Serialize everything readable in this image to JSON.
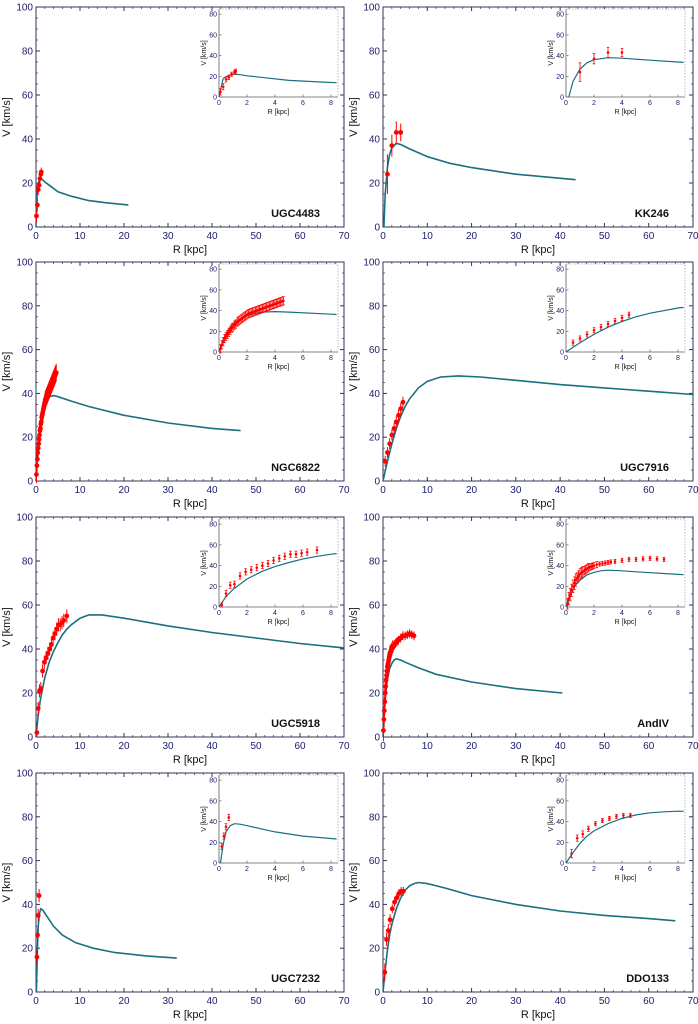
{
  "figure": {
    "xlabel": "R [kpc]",
    "ylabel": "V [km/s]",
    "inset_xlabel": "R [kpc]",
    "inset_ylabel": "V [km/s]",
    "colors": {
      "model": "#1a6f80",
      "data": "#ff0000",
      "axis": "#333355",
      "tick_text": "#1a1a6a",
      "grid": "#aaaaaa"
    }
  },
  "chart_data": [
    {
      "type": "line",
      "title": "UGC4483",
      "xlabel": "R [kpc]",
      "ylabel": "V [km/s]",
      "xlim": [
        0,
        70
      ],
      "ylim": [
        0,
        100
      ],
      "xticks": [
        0,
        10,
        20,
        30,
        40,
        50,
        60,
        70
      ],
      "yticks": [
        0,
        20,
        40,
        60,
        80,
        100
      ],
      "model": {
        "x": [
          0,
          0.3,
          0.7,
          1.1,
          1.5,
          2,
          3,
          5,
          8,
          12,
          16,
          21
        ],
        "y": [
          0,
          18,
          21,
          22,
          21.5,
          20.5,
          19,
          16,
          14,
          12,
          11,
          10
        ]
      },
      "observed": {
        "x": [
          0.1,
          0.3,
          0.5,
          0.7,
          0.9,
          1.1,
          1.2
        ],
        "y": [
          5,
          10,
          17,
          19,
          22,
          24,
          25
        ],
        "err": [
          3,
          3,
          2.5,
          2,
          2,
          2,
          2
        ]
      },
      "inset": {
        "xlim": [
          0,
          8.5
        ],
        "ylim": [
          0,
          85
        ],
        "xticks": [
          0,
          2,
          4,
          6,
          8
        ],
        "yticks": [
          0,
          20,
          40,
          60,
          80
        ],
        "model_xmax": 8.4
      }
    },
    {
      "type": "line",
      "title": "KK246",
      "xlabel": "R [kpc]",
      "ylabel": "V [km/s]",
      "xlim": [
        0,
        70
      ],
      "ylim": [
        0,
        100
      ],
      "xticks": [
        0,
        10,
        20,
        30,
        40,
        50,
        60,
        70
      ],
      "yticks": [
        0,
        20,
        40,
        60,
        80,
        100
      ],
      "model": {
        "x": [
          0.2,
          0.5,
          1,
          1.5,
          2,
          3,
          4,
          6,
          10,
          15,
          20,
          30,
          43.5
        ],
        "y": [
          0,
          15,
          27,
          33,
          36,
          38,
          37.5,
          35.5,
          32,
          29,
          27,
          24,
          21.5
        ]
      },
      "observed": {
        "x": [
          1,
          2,
          3,
          4
        ],
        "y": [
          24,
          37,
          43,
          43
        ],
        "err": [
          9,
          5,
          5,
          4
        ]
      },
      "inset": {
        "xlim": [
          0,
          8.5
        ],
        "ylim": [
          0,
          85
        ],
        "xticks": [
          0,
          2,
          4,
          6,
          8
        ],
        "yticks": [
          0,
          20,
          40,
          60,
          80
        ],
        "model_xmax": 8.4
      }
    },
    {
      "type": "line",
      "title": "NGC6822",
      "xlabel": "R [kpc]",
      "ylabel": "V [km/s]",
      "xlim": [
        0,
        70
      ],
      "ylim": [
        0,
        100
      ],
      "xticks": [
        0,
        10,
        20,
        30,
        40,
        50,
        60,
        70
      ],
      "yticks": [
        0,
        20,
        40,
        60,
        80,
        100
      ],
      "model": {
        "x": [
          0,
          0.3,
          0.6,
          1,
          1.5,
          2,
          2.5,
          3,
          4,
          5,
          8,
          12,
          20,
          30,
          40,
          46.5
        ],
        "y": [
          0,
          12,
          20,
          27,
          32,
          35,
          37,
          38.5,
          39,
          38.5,
          36.5,
          34,
          30,
          26.5,
          24,
          23
        ]
      },
      "observed": {
        "x": [
          0.1,
          0.2,
          0.3,
          0.4,
          0.5,
          0.6,
          0.7,
          0.8,
          0.9,
          1.0,
          1.1,
          1.2,
          1.3,
          1.4,
          1.5,
          1.6,
          1.7,
          1.8,
          1.9,
          2.0,
          2.1,
          2.2,
          2.3,
          2.4,
          2.5,
          2.6,
          2.7,
          2.8,
          2.9,
          3.0,
          3.1,
          3.2,
          3.3,
          3.4,
          3.5,
          3.6,
          3.7,
          3.8,
          3.9,
          4.0,
          4.1,
          4.2,
          4.3,
          4.4,
          4.5,
          4.6
        ],
        "y": [
          3,
          7,
          10,
          13,
          15,
          17,
          19,
          21,
          23,
          24,
          26,
          27,
          29,
          30,
          31,
          32,
          33,
          34,
          35,
          36,
          37,
          37.5,
          38,
          38.5,
          39,
          39.5,
          40,
          40.5,
          41,
          41.5,
          42,
          42.5,
          43,
          43.5,
          44,
          44.5,
          45,
          45.5,
          46,
          46.5,
          47,
          47.5,
          48,
          48.5,
          49,
          49.5
        ],
        "err": [
          4,
          4,
          4,
          4,
          4,
          4,
          4,
          4,
          4,
          4,
          4,
          4,
          4,
          4,
          4,
          4,
          4,
          4,
          4,
          4,
          4,
          4,
          4,
          4,
          4,
          4,
          4,
          4,
          4,
          4,
          4,
          4,
          4,
          4,
          4,
          4,
          4,
          4,
          4,
          4,
          4,
          4,
          4,
          4,
          4,
          4
        ]
      },
      "inset": {
        "xlim": [
          0,
          8.5
        ],
        "ylim": [
          0,
          85
        ],
        "xticks": [
          0,
          2,
          4,
          6,
          8
        ],
        "yticks": [
          0,
          20,
          40,
          60,
          80
        ],
        "model_xmax": 8.4
      }
    },
    {
      "type": "line",
      "title": "UGC7916",
      "xlabel": "R [kpc]",
      "ylabel": "V [km/s]",
      "xlim": [
        0,
        70
      ],
      "ylim": [
        0,
        100
      ],
      "xticks": [
        0,
        10,
        20,
        30,
        40,
        50,
        60,
        70
      ],
      "yticks": [
        0,
        20,
        40,
        60,
        80,
        100
      ],
      "model": {
        "x": [
          0,
          1,
          2,
          3,
          4,
          5,
          6,
          8,
          10,
          13,
          17,
          22,
          30,
          40,
          50,
          60,
          70
        ],
        "y": [
          0,
          9,
          17,
          24,
          29.5,
          34,
          37.5,
          42.5,
          45.5,
          47.5,
          48,
          47.5,
          46,
          44,
          42.5,
          41,
          39.5
        ]
      },
      "observed": {
        "x": [
          0.5,
          1.0,
          1.5,
          2.0,
          2.5,
          3.0,
          3.5,
          4.0,
          4.5
        ],
        "y": [
          9,
          13,
          17,
          21,
          24,
          27,
          30,
          33,
          36
        ],
        "err": [
          2.5,
          2.5,
          2.5,
          2.5,
          2.5,
          2.5,
          2.5,
          2.5,
          2.5
        ]
      },
      "inset": {
        "xlim": [
          0,
          8.5
        ],
        "ylim": [
          0,
          85
        ],
        "xticks": [
          0,
          2,
          4,
          6,
          8
        ],
        "yticks": [
          0,
          20,
          40,
          60,
          80
        ],
        "model_xmax": 8.4
      }
    },
    {
      "type": "line",
      "title": "UGC5918",
      "xlabel": "R [kpc]",
      "ylabel": "V [km/s]",
      "xlim": [
        0,
        70
      ],
      "ylim": [
        0,
        100
      ],
      "xticks": [
        0,
        10,
        20,
        30,
        40,
        50,
        60,
        70
      ],
      "yticks": [
        0,
        20,
        40,
        60,
        80,
        100
      ],
      "model": {
        "x": [
          0,
          0.5,
          1,
          2,
          3,
          4,
          5,
          6,
          7,
          8,
          10,
          12,
          15,
          20,
          30,
          40,
          50,
          60,
          70
        ],
        "y": [
          0,
          10,
          17,
          27,
          34,
          39,
          43,
          46.5,
          49,
          51,
          54,
          55.5,
          55.5,
          54,
          50.5,
          47.5,
          45,
          42.5,
          40.5
        ]
      },
      "observed": {
        "x": [
          0.2,
          0.5,
          0.8,
          1.1,
          1.5,
          1.9,
          2.3,
          2.7,
          3.1,
          3.5,
          3.9,
          4.3,
          4.7,
          5.1,
          5.5,
          5.9,
          6.3,
          7.0
        ],
        "y": [
          2,
          13,
          21,
          22,
          30,
          34,
          36,
          38,
          40,
          42,
          45,
          47,
          49,
          51,
          51,
          52,
          53,
          55
        ],
        "err": [
          2,
          3,
          3,
          3,
          3,
          3,
          3,
          3,
          3,
          3,
          3,
          3,
          3,
          3,
          3,
          3,
          3,
          3
        ]
      },
      "inset": {
        "xlim": [
          0,
          8.5
        ],
        "ylim": [
          0,
          85
        ],
        "xticks": [
          0,
          2,
          4,
          6,
          8
        ],
        "yticks": [
          0,
          20,
          40,
          60,
          80
        ],
        "model_xmax": 8.4
      }
    },
    {
      "type": "line",
      "title": "AndIV",
      "xlabel": "R [kpc]",
      "ylabel": "V [km/s]",
      "xlim": [
        0,
        70
      ],
      "ylim": [
        0,
        100
      ],
      "xticks": [
        0,
        10,
        20,
        30,
        40,
        50,
        60,
        70
      ],
      "yticks": [
        0,
        20,
        40,
        60,
        80,
        100
      ],
      "model": {
        "x": [
          0,
          0.3,
          0.6,
          1,
          1.5,
          2,
          2.5,
          3,
          4,
          5,
          8,
          12,
          20,
          30,
          40.5
        ],
        "y": [
          0,
          12,
          20,
          26,
          31,
          33.5,
          35,
          35.5,
          35,
          34,
          31.5,
          28.5,
          25,
          22,
          20
        ]
      },
      "observed": {
        "x": [
          0.1,
          0.2,
          0.3,
          0.4,
          0.5,
          0.6,
          0.7,
          0.8,
          0.9,
          1.0,
          1.1,
          1.2,
          1.3,
          1.4,
          1.5,
          1.6,
          1.7,
          1.8,
          1.9,
          2.0,
          2.2,
          2.4,
          2.6,
          2.8,
          3.0,
          3.2,
          3.5,
          4.0,
          4.5,
          5.0,
          5.5,
          6.0,
          6.5,
          7.0
        ],
        "y": [
          3,
          8,
          12,
          16,
          20,
          23,
          26,
          28,
          30,
          32,
          33,
          34,
          35,
          36,
          37,
          38,
          38.5,
          39,
          39.5,
          40,
          41,
          41.5,
          42,
          42.5,
          43,
          43.5,
          44,
          45,
          46,
          46,
          46.5,
          47,
          46.5,
          46
        ],
        "err": [
          5,
          6,
          6,
          6,
          6,
          6,
          6,
          5,
          5,
          5,
          5,
          5,
          4,
          4,
          4,
          4,
          3,
          3,
          3,
          3,
          3,
          2,
          2,
          2,
          2,
          2,
          2,
          2,
          2,
          2,
          2,
          2,
          2,
          2
        ]
      },
      "inset": {
        "xlim": [
          0,
          8.5
        ],
        "ylim": [
          0,
          85
        ],
        "xticks": [
          0,
          2,
          4,
          6,
          8
        ],
        "yticks": [
          0,
          20,
          40,
          60,
          80
        ],
        "model_xmax": 8.4
      }
    },
    {
      "type": "line",
      "title": "UGC7232",
      "xlabel": "R [kpc]",
      "ylabel": "V [km/s]",
      "xlim": [
        0,
        70
      ],
      "ylim": [
        0,
        100
      ],
      "xticks": [
        0,
        10,
        20,
        30,
        40,
        50,
        60,
        70
      ],
      "yticks": [
        0,
        20,
        40,
        60,
        80,
        100
      ],
      "model": {
        "x": [
          0.1,
          0.3,
          0.5,
          0.8,
          1.1,
          1.5,
          2,
          3,
          4,
          6,
          9,
          13,
          18,
          25,
          32
        ],
        "y": [
          0,
          18,
          30,
          36,
          38,
          37.5,
          36,
          33,
          30,
          26,
          22.5,
          20,
          18,
          16.5,
          15.5
        ]
      },
      "observed": {
        "x": [
          0.2,
          0.35,
          0.5,
          0.7
        ],
        "y": [
          16,
          26,
          35,
          44
        ],
        "err": [
          3,
          3,
          3,
          3
        ]
      },
      "inset": {
        "xlim": [
          0,
          8.5
        ],
        "ylim": [
          0,
          85
        ],
        "xticks": [
          0,
          2,
          4,
          6,
          8
        ],
        "yticks": [
          0,
          20,
          40,
          60,
          80
        ],
        "model_xmax": 8.4
      }
    },
    {
      "type": "line",
      "title": "DDO133",
      "xlabel": "R [kpc]",
      "ylabel": "V [km/s]",
      "xlim": [
        0,
        70
      ],
      "ylim": [
        0,
        100
      ],
      "xticks": [
        0,
        10,
        20,
        30,
        40,
        50,
        60,
        70
      ],
      "yticks": [
        0,
        20,
        40,
        60,
        80,
        100
      ],
      "model": {
        "x": [
          0,
          0.5,
          1,
          1.5,
          2,
          3,
          4,
          5,
          6,
          7,
          8,
          10,
          14,
          20,
          30,
          40,
          50,
          60,
          66
        ],
        "y": [
          0,
          10,
          19,
          26,
          31,
          38,
          43,
          46.5,
          48.5,
          49.5,
          50,
          49.5,
          47.5,
          44,
          40,
          37,
          35,
          33.5,
          32.5
        ]
      },
      "observed": {
        "x": [
          0.4,
          0.8,
          1.2,
          1.6,
          2.1,
          2.6,
          3.1,
          3.6,
          4.1,
          4.6
        ],
        "y": [
          9,
          24,
          28,
          33,
          38,
          41,
          43,
          45,
          46,
          46
        ],
        "err": [
          4,
          3,
          3,
          2.5,
          2,
          2,
          2,
          2,
          2,
          2
        ]
      },
      "inset": {
        "xlim": [
          0,
          8.5
        ],
        "ylim": [
          0,
          85
        ],
        "xticks": [
          0,
          2,
          4,
          6,
          8
        ],
        "yticks": [
          0,
          20,
          40,
          60,
          80
        ],
        "model_xmax": 8.4
      }
    }
  ]
}
